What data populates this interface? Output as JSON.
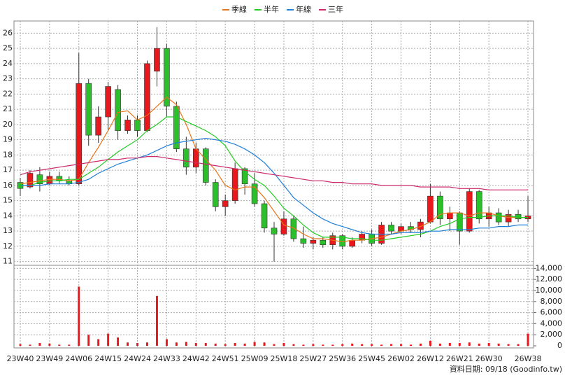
{
  "chart_data": {
    "type": "candlestick",
    "categories": [
      "23W40",
      null,
      null,
      "23W49",
      null,
      null,
      "24W06",
      null,
      null,
      "24W15",
      null,
      null,
      "24W24",
      null,
      null,
      "24W33",
      null,
      null,
      "24W42",
      null,
      null,
      "24W51",
      null,
      null,
      "25W09",
      null,
      null,
      "25W18",
      null,
      null,
      "25W27",
      null,
      null,
      "25W36",
      null,
      null,
      "25W45",
      null,
      null,
      "26W02",
      null,
      null,
      "26W12",
      null,
      null,
      "26W21",
      null,
      null,
      "26W30",
      null,
      null,
      null,
      "26W38"
    ],
    "up_color": "#e8181c",
    "down_color": "#2bbf2b",
    "edge_color": "#333333",
    "candles": {
      "open": [
        16.2,
        15.9,
        16.7,
        16.1,
        16.6,
        16.3,
        16.1,
        22.7,
        19.3,
        20.5,
        22.3,
        19.6,
        20.3,
        19.6,
        23.5,
        25.0,
        21.2,
        18.4,
        17.2,
        18.4,
        16.2,
        14.6,
        15.0,
        17.1,
        16.1,
        14.8,
        13.2,
        12.8,
        13.8,
        12.5,
        12.2,
        12.4,
        12.1,
        12.7,
        12.0,
        12.4,
        12.8,
        12.2,
        13.4,
        13.0,
        13.3,
        13.1,
        13.6,
        15.3,
        13.8,
        14.2,
        13.0,
        15.6,
        13.8,
        14.2,
        13.6,
        14.1,
        13.8
      ],
      "high": [
        16.5,
        17.0,
        17.2,
        16.9,
        16.9,
        16.6,
        24.7,
        23.0,
        21.2,
        22.8,
        22.6,
        20.6,
        20.6,
        24.2,
        26.4,
        25.3,
        21.5,
        19.2,
        18.8,
        18.5,
        16.4,
        15.4,
        17.5,
        17.2,
        16.8,
        15.0,
        13.6,
        14.3,
        14.0,
        13.3,
        12.6,
        12.6,
        12.9,
        12.8,
        12.6,
        13.0,
        13.1,
        13.6,
        13.6,
        13.5,
        13.6,
        13.8,
        16.1,
        15.6,
        14.6,
        14.3,
        15.8,
        15.7,
        14.6,
        14.5,
        14.4,
        14.4,
        15.3
      ],
      "low": [
        15.3,
        15.8,
        15.6,
        16.0,
        16.1,
        16.0,
        16.0,
        18.6,
        18.8,
        19.6,
        19.0,
        19.4,
        19.2,
        19.5,
        22.5,
        20.5,
        18.2,
        16.7,
        16.8,
        16.0,
        14.3,
        14.0,
        14.8,
        15.4,
        14.6,
        12.9,
        11.0,
        12.7,
        12.3,
        11.9,
        11.8,
        11.9,
        11.8,
        11.8,
        11.9,
        12.2,
        12.0,
        12.1,
        12.8,
        12.8,
        12.9,
        12.6,
        13.5,
        13.4,
        13.0,
        12.1,
        12.9,
        13.5,
        13.3,
        13.4,
        13.3,
        13.6,
        13.6
      ],
      "close": [
        15.8,
        16.8,
        16.1,
        16.6,
        16.3,
        16.1,
        22.7,
        19.3,
        20.5,
        22.5,
        19.6,
        20.3,
        19.6,
        24.0,
        25.0,
        21.2,
        18.4,
        17.2,
        18.4,
        16.2,
        14.6,
        15.0,
        17.1,
        16.1,
        14.8,
        13.2,
        12.8,
        13.8,
        12.5,
        12.2,
        12.4,
        12.1,
        12.7,
        12.0,
        12.4,
        12.8,
        12.2,
        13.4,
        13.0,
        13.3,
        13.1,
        13.6,
        15.3,
        13.8,
        14.2,
        13.0,
        15.6,
        13.8,
        14.2,
        13.6,
        14.1,
        13.8,
        14.0
      ]
    },
    "series": [
      {
        "name": "季線",
        "color": "#e8741a",
        "values": [
          16.1,
          16.2,
          16.3,
          16.4,
          16.4,
          16.3,
          16.4,
          17.5,
          18.5,
          19.6,
          20.8,
          20.9,
          20.3,
          20.6,
          21.2,
          21.8,
          21.3,
          20.0,
          18.4,
          17.7,
          17.0,
          16.0,
          15.7,
          15.9,
          15.9,
          15.2,
          14.3,
          13.4,
          13.2,
          12.8,
          12.5,
          12.5,
          12.4,
          12.3,
          12.4,
          12.4,
          12.5,
          12.6,
          12.8,
          13.0,
          13.1,
          13.3,
          13.6,
          14.1,
          14.2,
          14.2,
          14.0,
          14.2,
          14.2,
          14.0,
          13.9,
          13.9,
          13.9
        ]
      },
      {
        "name": "半年",
        "color": "#22cc22",
        "values": [
          16.0,
          16.0,
          16.2,
          16.3,
          16.3,
          16.4,
          16.4,
          16.8,
          17.2,
          17.7,
          18.2,
          18.6,
          19.0,
          19.6,
          20.0,
          20.5,
          20.5,
          20.2,
          19.9,
          19.6,
          19.2,
          18.6,
          17.6,
          16.9,
          16.4,
          16.0,
          15.3,
          14.5,
          14.0,
          13.4,
          12.9,
          12.6,
          12.6,
          12.6,
          12.5,
          12.5,
          12.4,
          12.4,
          12.5,
          12.6,
          12.7,
          12.8,
          13.0,
          13.3,
          13.5,
          13.8,
          13.9,
          13.9,
          14.0,
          14.0,
          14.0,
          13.9,
          13.9
        ]
      },
      {
        "name": "年線",
        "color": "#1e7fd8",
        "values": [
          16.0,
          16.0,
          16.0,
          16.1,
          16.1,
          16.1,
          16.2,
          16.4,
          16.8,
          17.1,
          17.4,
          17.6,
          17.8,
          18.0,
          18.3,
          18.6,
          18.8,
          18.9,
          19.0,
          19.1,
          19.0,
          18.9,
          18.7,
          18.4,
          18.0,
          17.5,
          16.8,
          16.0,
          15.2,
          14.7,
          14.2,
          13.8,
          13.5,
          13.3,
          13.1,
          12.9,
          12.8,
          12.8,
          12.8,
          12.9,
          12.9,
          12.9,
          13.0,
          13.0,
          13.1,
          13.1,
          13.1,
          13.2,
          13.2,
          13.3,
          13.3,
          13.4,
          13.4
        ]
      },
      {
        "name": "三年",
        "color": "#cc2a6a",
        "values": [
          16.7,
          16.9,
          17.0,
          17.1,
          17.2,
          17.3,
          17.4,
          17.5,
          17.6,
          17.7,
          17.7,
          17.8,
          17.8,
          17.9,
          17.9,
          17.8,
          17.7,
          17.6,
          17.5,
          17.4,
          17.3,
          17.2,
          17.1,
          17.0,
          16.9,
          16.8,
          16.7,
          16.6,
          16.5,
          16.4,
          16.3,
          16.3,
          16.2,
          16.2,
          16.1,
          16.1,
          16.1,
          16.0,
          16.0,
          16.0,
          16.0,
          15.9,
          15.9,
          15.9,
          15.9,
          15.8,
          15.8,
          15.8,
          15.7,
          15.7,
          15.7,
          15.7,
          15.7
        ]
      }
    ],
    "volume": {
      "axis": "y2",
      "color": "#e8181c",
      "values": [
        300,
        200,
        500,
        400,
        200,
        200,
        10700,
        2000,
        1200,
        2200,
        1500,
        600,
        500,
        600,
        9000,
        1200,
        600,
        700,
        500,
        500,
        400,
        300,
        500,
        400,
        700,
        600,
        300,
        500,
        300,
        200,
        300,
        200,
        200,
        300,
        400,
        300,
        300,
        200,
        300,
        300,
        200,
        400,
        900,
        400,
        500,
        500,
        600,
        400,
        500,
        400,
        300,
        300,
        2200
      ]
    },
    "ylim": [
      10.8,
      26.8
    ],
    "yticks": [
      11,
      12,
      13,
      14,
      15,
      16,
      17,
      18,
      19,
      20,
      21,
      22,
      23,
      24,
      25,
      26
    ],
    "y2lim": [
      0,
      14300
    ],
    "y2ticks": [
      0,
      {
        "value": 2000,
        "label": "2,000"
      },
      {
        "value": 4000,
        "label": "4,000"
      },
      {
        "value": 6000,
        "label": "6,000"
      },
      {
        "value": 8000,
        "label": "8,000"
      },
      {
        "value": 10000,
        "label": "10,000"
      },
      {
        "value": 12000,
        "label": "12,000"
      },
      {
        "value": 14000,
        "label": "14,000"
      }
    ],
    "grid": true,
    "legend": "top",
    "annotation": "資料日期: 09/18  (Goodinfo.tw)"
  }
}
